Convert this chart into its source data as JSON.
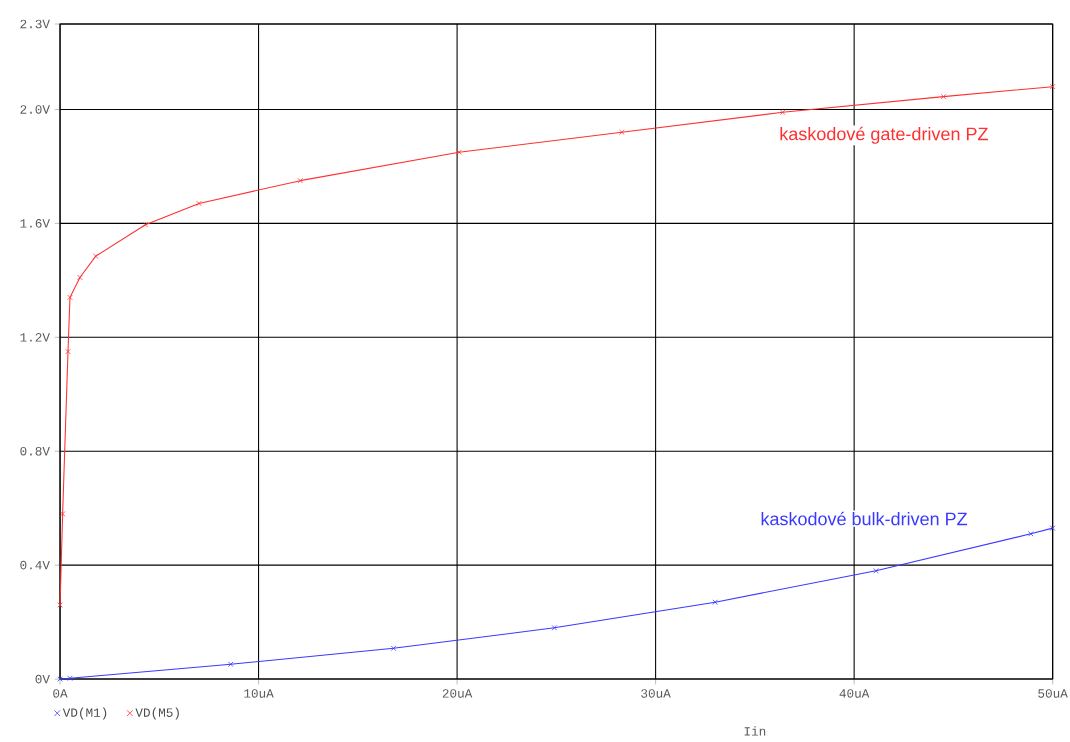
{
  "chart_data": {
    "type": "line",
    "xlabel": "Iin",
    "x": [
      0,
      0.13,
      0.4,
      0.5,
      1,
      1.8,
      4.3,
      7,
      12.1,
      20.1,
      28.3,
      36.4,
      44.5,
      50
    ],
    "series": [
      {
        "name": "VD(M1)",
        "color": "#3a3aff",
        "x": [
          0,
          0.5,
          8.6,
          16.8,
          24.9,
          33,
          41.1,
          48.9,
          50
        ],
        "values": [
          0,
          0.003,
          0.052,
          0.108,
          0.18,
          0.27,
          0.38,
          0.51,
          0.53
        ]
      },
      {
        "name": "VD(M5)",
        "color": "#ff3030",
        "values": [
          0.26,
          0.58,
          1.15,
          1.34,
          1.41,
          1.485,
          1.595,
          1.67,
          1.75,
          1.85,
          1.92,
          1.99,
          2.045,
          2.08
        ]
      }
    ],
    "xlim": [
      0,
      50
    ],
    "ylim": [
      0,
      2.3
    ],
    "xticks": [
      {
        "value": 0,
        "label": "0A"
      },
      {
        "value": 10,
        "label": "10uA"
      },
      {
        "value": 20,
        "label": "20uA"
      },
      {
        "value": 30,
        "label": "30uA"
      },
      {
        "value": 40,
        "label": "40uA"
      },
      {
        "value": 50,
        "label": "50uA"
      }
    ],
    "yticks": [
      {
        "value": 0,
        "label": "0V"
      },
      {
        "value": 0.4,
        "label": "0.4V"
      },
      {
        "value": 0.8,
        "label": "0.8V"
      },
      {
        "value": 1.2,
        "label": "1.2V"
      },
      {
        "value": 1.6,
        "label": "1.6V"
      },
      {
        "value": 2.0,
        "label": "2.0V"
      },
      {
        "value": 2.3,
        "label": "2.3V"
      }
    ],
    "annotations": [
      "kaskodové bulk-driven PZ",
      "kaskodové gate-driven PZ"
    ],
    "grid": true,
    "legend": "bottom left",
    "marker": "cross",
    "line_style": "solid"
  }
}
